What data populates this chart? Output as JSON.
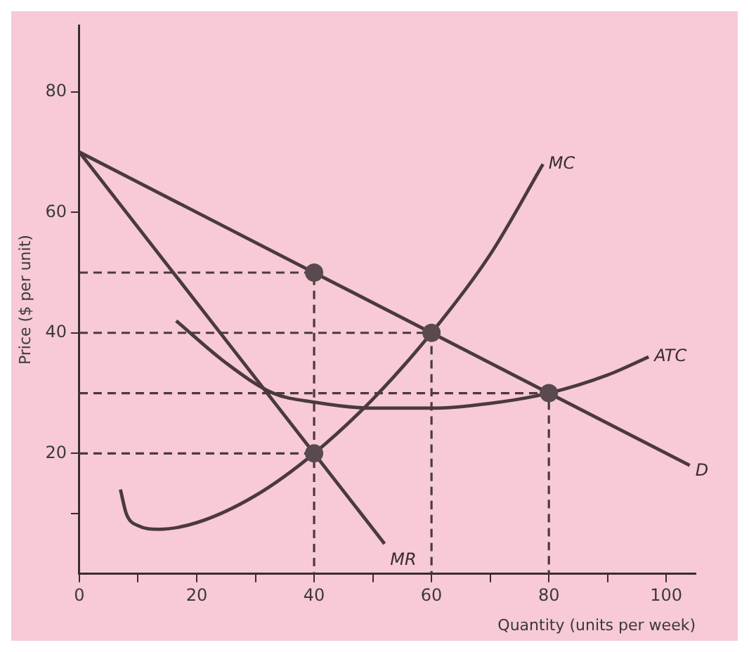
{
  "chart_data": {
    "type": "line",
    "xlabel": "Quantity (units per week)",
    "ylabel": "Price ($ per unit)",
    "xlim": [
      0,
      105
    ],
    "ylim": [
      0,
      91
    ],
    "xticks": [
      0,
      {
        "value": 10,
        "label": null
      },
      20,
      {
        "value": 30,
        "label": null
      },
      40,
      {
        "value": 50,
        "label": null
      },
      60,
      {
        "value": 70,
        "label": null
      },
      80,
      {
        "value": 90,
        "label": null
      },
      100
    ],
    "yticks": [
      {
        "value": 10,
        "label": null
      },
      20,
      40,
      60,
      80
    ],
    "grid": false,
    "legend": false,
    "marker": "none",
    "series": [
      {
        "name": "D",
        "color": "#4a3a3f",
        "x": [
          0,
          104
        ],
        "values": [
          70,
          18
        ]
      },
      {
        "name": "MR",
        "color": "#4a3a3f",
        "x": [
          0,
          52
        ],
        "values": [
          70,
          5
        ]
      },
      {
        "name": "MC",
        "color": "#4a3a3f",
        "x": [
          7,
          8,
          10,
          13.5,
          20,
          30,
          40,
          50,
          60,
          70,
          79
        ],
        "values": [
          14,
          10,
          8,
          7.4,
          8.5,
          13,
          20,
          29,
          40,
          53,
          68
        ]
      },
      {
        "name": "ATC",
        "color": "#4a3a3f",
        "x": [
          16.5,
          25,
          33,
          40,
          50,
          60,
          70,
          80,
          90,
          97
        ],
        "values": [
          42,
          35,
          30,
          28.5,
          27.5,
          27.5,
          28.3,
          30,
          33,
          36
        ]
      },
      {
        "color": "#4a3a3f",
        "line_style": "dashed",
        "x": [
          0,
          40,
          40
        ],
        "values": [
          50,
          50,
          0
        ]
      },
      {
        "color": "#4a3a3f",
        "line_style": "dashed",
        "x": [
          0,
          60,
          60
        ],
        "values": [
          40,
          40,
          0
        ]
      },
      {
        "color": "#4a3a3f",
        "line_style": "dashed",
        "x": [
          0,
          80,
          80
        ],
        "values": [
          30,
          30,
          0
        ]
      },
      {
        "color": "#4a3a3f",
        "line_style": "dashed",
        "x": [
          0,
          40
        ],
        "values": [
          20,
          20
        ]
      },
      {
        "type": "scatter",
        "marker": "circle",
        "color": "#5a4a50",
        "x": [
          40,
          60,
          80,
          40
        ],
        "values": [
          50,
          40,
          30,
          20
        ]
      }
    ]
  }
}
